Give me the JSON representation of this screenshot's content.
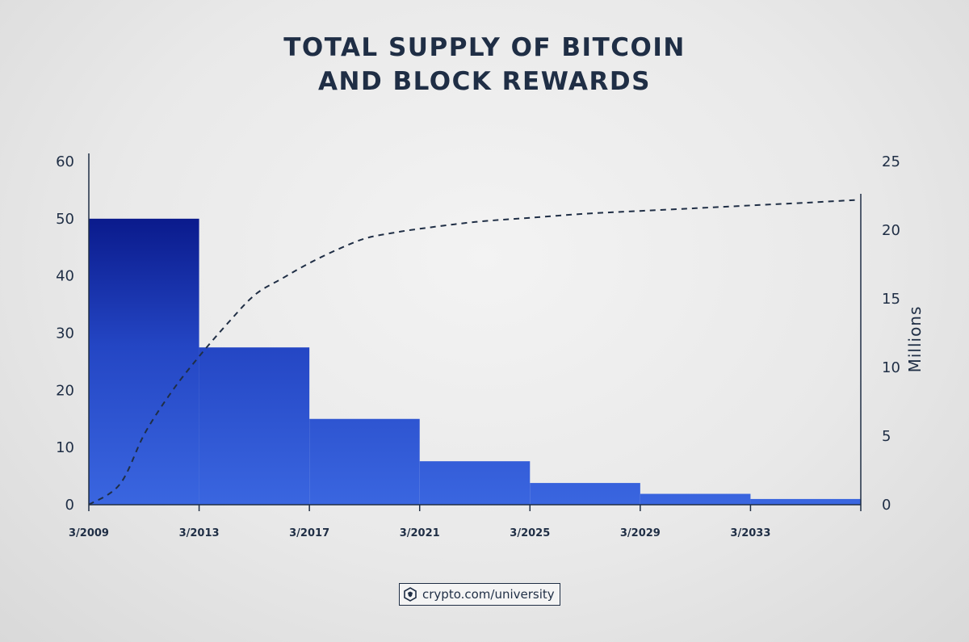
{
  "title": {
    "line1": "TOTAL SUPPLY OF BITCOIN",
    "line2": "AND BLOCK REWARDS"
  },
  "footer": {
    "text": "crypto.com/university",
    "icon": "crypto-com-lion-shield-icon"
  },
  "colors": {
    "text": "#1f2e45",
    "bar_top": "#0a1a8c",
    "bar_bottom": "#3a66e0",
    "line": "#1f2e45"
  },
  "chart_data": {
    "type": "bar",
    "categories": [
      "3/2009",
      "3/2013",
      "3/2017",
      "3/2021",
      "3/2025",
      "3/2029",
      "3/2033"
    ],
    "x_ticks": [
      "3/2009",
      "3/2013",
      "3/2017",
      "3/2021",
      "3/2025",
      "3/2029",
      "3/2033"
    ],
    "x_range": [
      2009.17,
      2037.17
    ],
    "y_left": {
      "ticks": [
        "0",
        "10",
        "20",
        "30",
        "40",
        "50",
        "60"
      ],
      "range": [
        0,
        60
      ]
    },
    "y_right": {
      "label": "Millions",
      "ticks": [
        "0",
        "5",
        "10",
        "15",
        "20",
        "25"
      ],
      "range": [
        0,
        25
      ]
    },
    "block_rewards": [
      {
        "start": 2009.17,
        "end": 2013.17,
        "value": 50
      },
      {
        "start": 2013.17,
        "end": 2017.17,
        "value": 27.5
      },
      {
        "start": 2017.17,
        "end": 2021.17,
        "value": 15
      },
      {
        "start": 2021.17,
        "end": 2025.17,
        "value": 7.6
      },
      {
        "start": 2025.17,
        "end": 2029.17,
        "value": 3.8
      },
      {
        "start": 2029.17,
        "end": 2033.17,
        "value": 1.9
      },
      {
        "start": 2033.17,
        "end": 2037.17,
        "value": 1
      }
    ],
    "total_supply": {
      "x": [
        2009.17,
        2010.3,
        2011.2,
        2012.2,
        2013.17,
        2014.2,
        2015.2,
        2016.2,
        2017.17,
        2018.2,
        2019.2,
        2020.2,
        2021.17,
        2023.2,
        2025.17,
        2027.2,
        2029.17,
        2031.2,
        2033.17,
        2035.2,
        2037.0
      ],
      "y": [
        0,
        1.5,
        5.2,
        8.3,
        10.8,
        13.2,
        15.3,
        16.5,
        17.6,
        18.6,
        19.4,
        19.8,
        20.1,
        20.6,
        20.9,
        21.2,
        21.4,
        21.6,
        21.8,
        22.0,
        22.2
      ]
    },
    "legend": "none",
    "grid": false
  }
}
